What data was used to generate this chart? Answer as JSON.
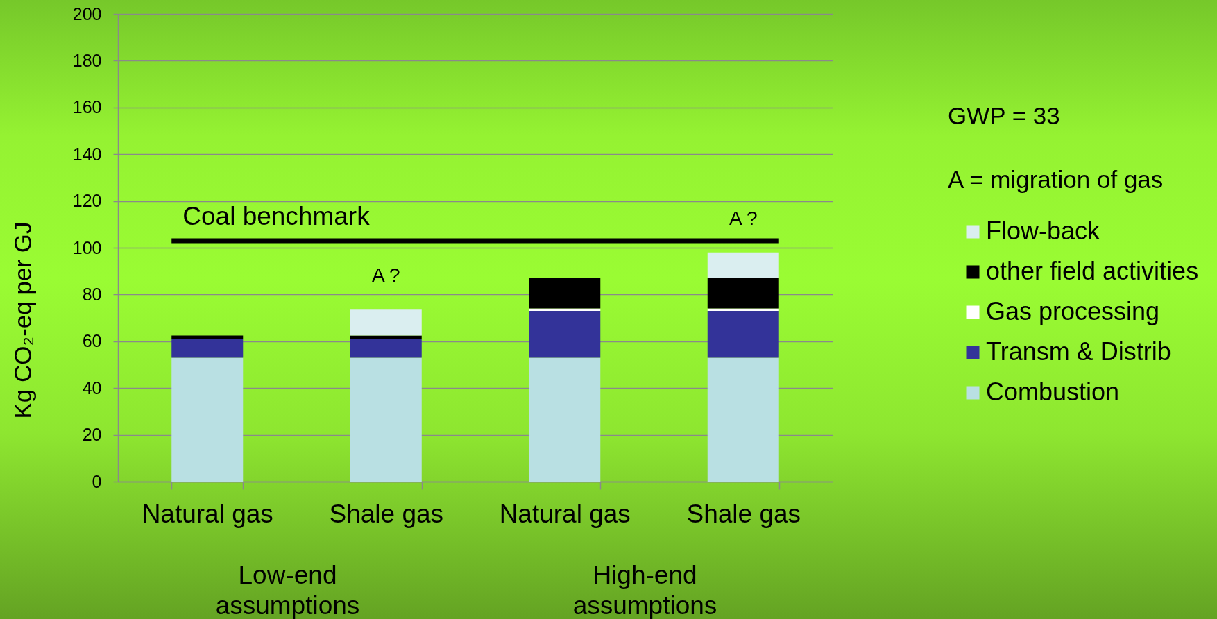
{
  "chart_data": {
    "type": "bar",
    "stacked": true,
    "categories": [
      "Natural gas",
      "Shale gas",
      "Natural gas",
      "Shale gas"
    ],
    "series": [
      {
        "name": "Combustion",
        "color": "#b9e0e3",
        "values": [
          53,
          53,
          53,
          53
        ]
      },
      {
        "name": "Transm & Distrib",
        "color": "#333399",
        "values": [
          8,
          8,
          20,
          20
        ]
      },
      {
        "name": "Gas processing",
        "color": "#ffffff",
        "values": [
          null,
          null,
          1,
          1
        ]
      },
      {
        "name": "other field activities",
        "color": "#000000",
        "values": [
          1.5,
          1.5,
          13,
          13
        ]
      },
      {
        "name": "Flow-back",
        "color": "#daeef0",
        "values": [
          null,
          11,
          null,
          11
        ]
      }
    ],
    "ylabel": "Kg CO₂-eq per GJ",
    "ylim": [
      0,
      200
    ],
    "yticks": [
      0,
      20,
      40,
      60,
      80,
      100,
      120,
      140,
      160,
      180,
      200
    ],
    "grid": "y",
    "legend": "right",
    "ref_lines": [
      {
        "axis": "y",
        "value": 103,
        "label": "Coal benchmark",
        "color": "#000000"
      }
    ],
    "annotations": [
      "A ?",
      "A ?",
      "Low-end assumptions",
      "High-end assumptions",
      "GWP = 33",
      "A = migration of gas"
    ]
  }
}
